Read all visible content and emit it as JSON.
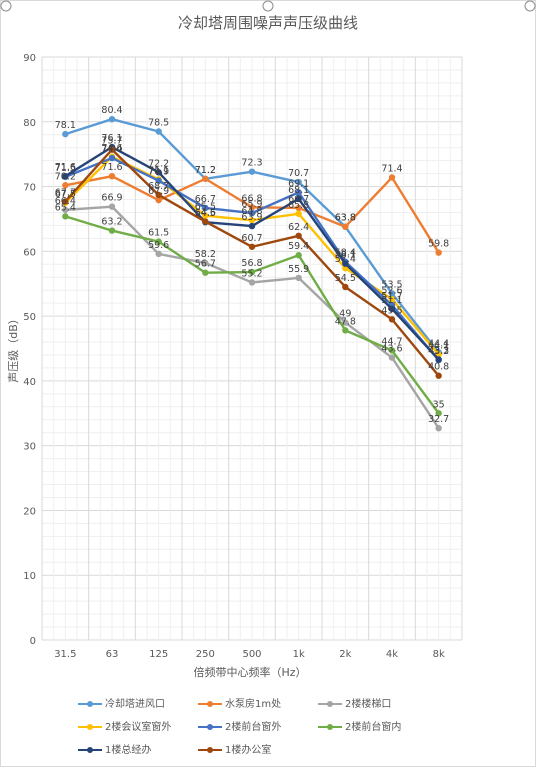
{
  "chart_data": {
    "type": "line",
    "title": "冷却塔周围噪声声压级曲线",
    "xlabel": "倍频带中心频率（Hz）",
    "ylabel": "声压级（dB）",
    "ylim": [
      0,
      90
    ],
    "yticks": [
      0,
      10,
      20,
      30,
      40,
      50,
      60,
      70,
      80,
      90
    ],
    "grid": true,
    "legend_position": "bottom",
    "categories": [
      "31.5",
      "63",
      "125",
      "250",
      "500",
      "1k",
      "2k",
      "4k",
      "8k"
    ],
    "series": [
      {
        "name": "冷却塔进风口",
        "color": "#5B9BD5",
        "values": [
          78.1,
          80.4,
          78.5,
          71.2,
          72.3,
          70.7,
          63.8,
          53.5,
          44.4
        ]
      },
      {
        "name": "水泵房1m处",
        "color": "#ED7D31",
        "values": [
          70.2,
          71.6,
          67.9,
          71.2,
          66.8,
          66.7,
          63.8,
          71.4,
          59.8
        ]
      },
      {
        "name": "2楼楼梯口",
        "color": "#A5A5A5",
        "values": [
          66.4,
          66.9,
          59.6,
          58.2,
          55.2,
          55.9,
          49.0,
          43.6,
          32.7
        ]
      },
      {
        "name": "2楼会议室窗外",
        "color": "#FFC000",
        "values": [
          67.5,
          74.6,
          71.1,
          65.5,
          64.8,
          65.8,
          57.4,
          52.6,
          44.1
        ]
      },
      {
        "name": "2楼前台窗外",
        "color": "#4472C4",
        "values": [
          71.5,
          74.4,
          70.9,
          66.7,
          65.9,
          69.1,
          58.4,
          51.7,
          43.2
        ]
      },
      {
        "name": "2楼前台窗内",
        "color": "#70AD47",
        "values": [
          65.4,
          63.2,
          61.5,
          56.7,
          56.8,
          59.4,
          47.8,
          44.7,
          35.0
        ]
      },
      {
        "name": "1楼总经办",
        "color": "#264478",
        "values": [
          71.6,
          76.1,
          72.2,
          64.5,
          63.9,
          68.1,
          58.1,
          51.1,
          43.3
        ]
      },
      {
        "name": "1楼办公室",
        "color": "#9E480E",
        "values": [
          67.7,
          75.7,
          68.7,
          64.6,
          60.7,
          62.4,
          54.5,
          49.5,
          40.8
        ]
      }
    ]
  }
}
